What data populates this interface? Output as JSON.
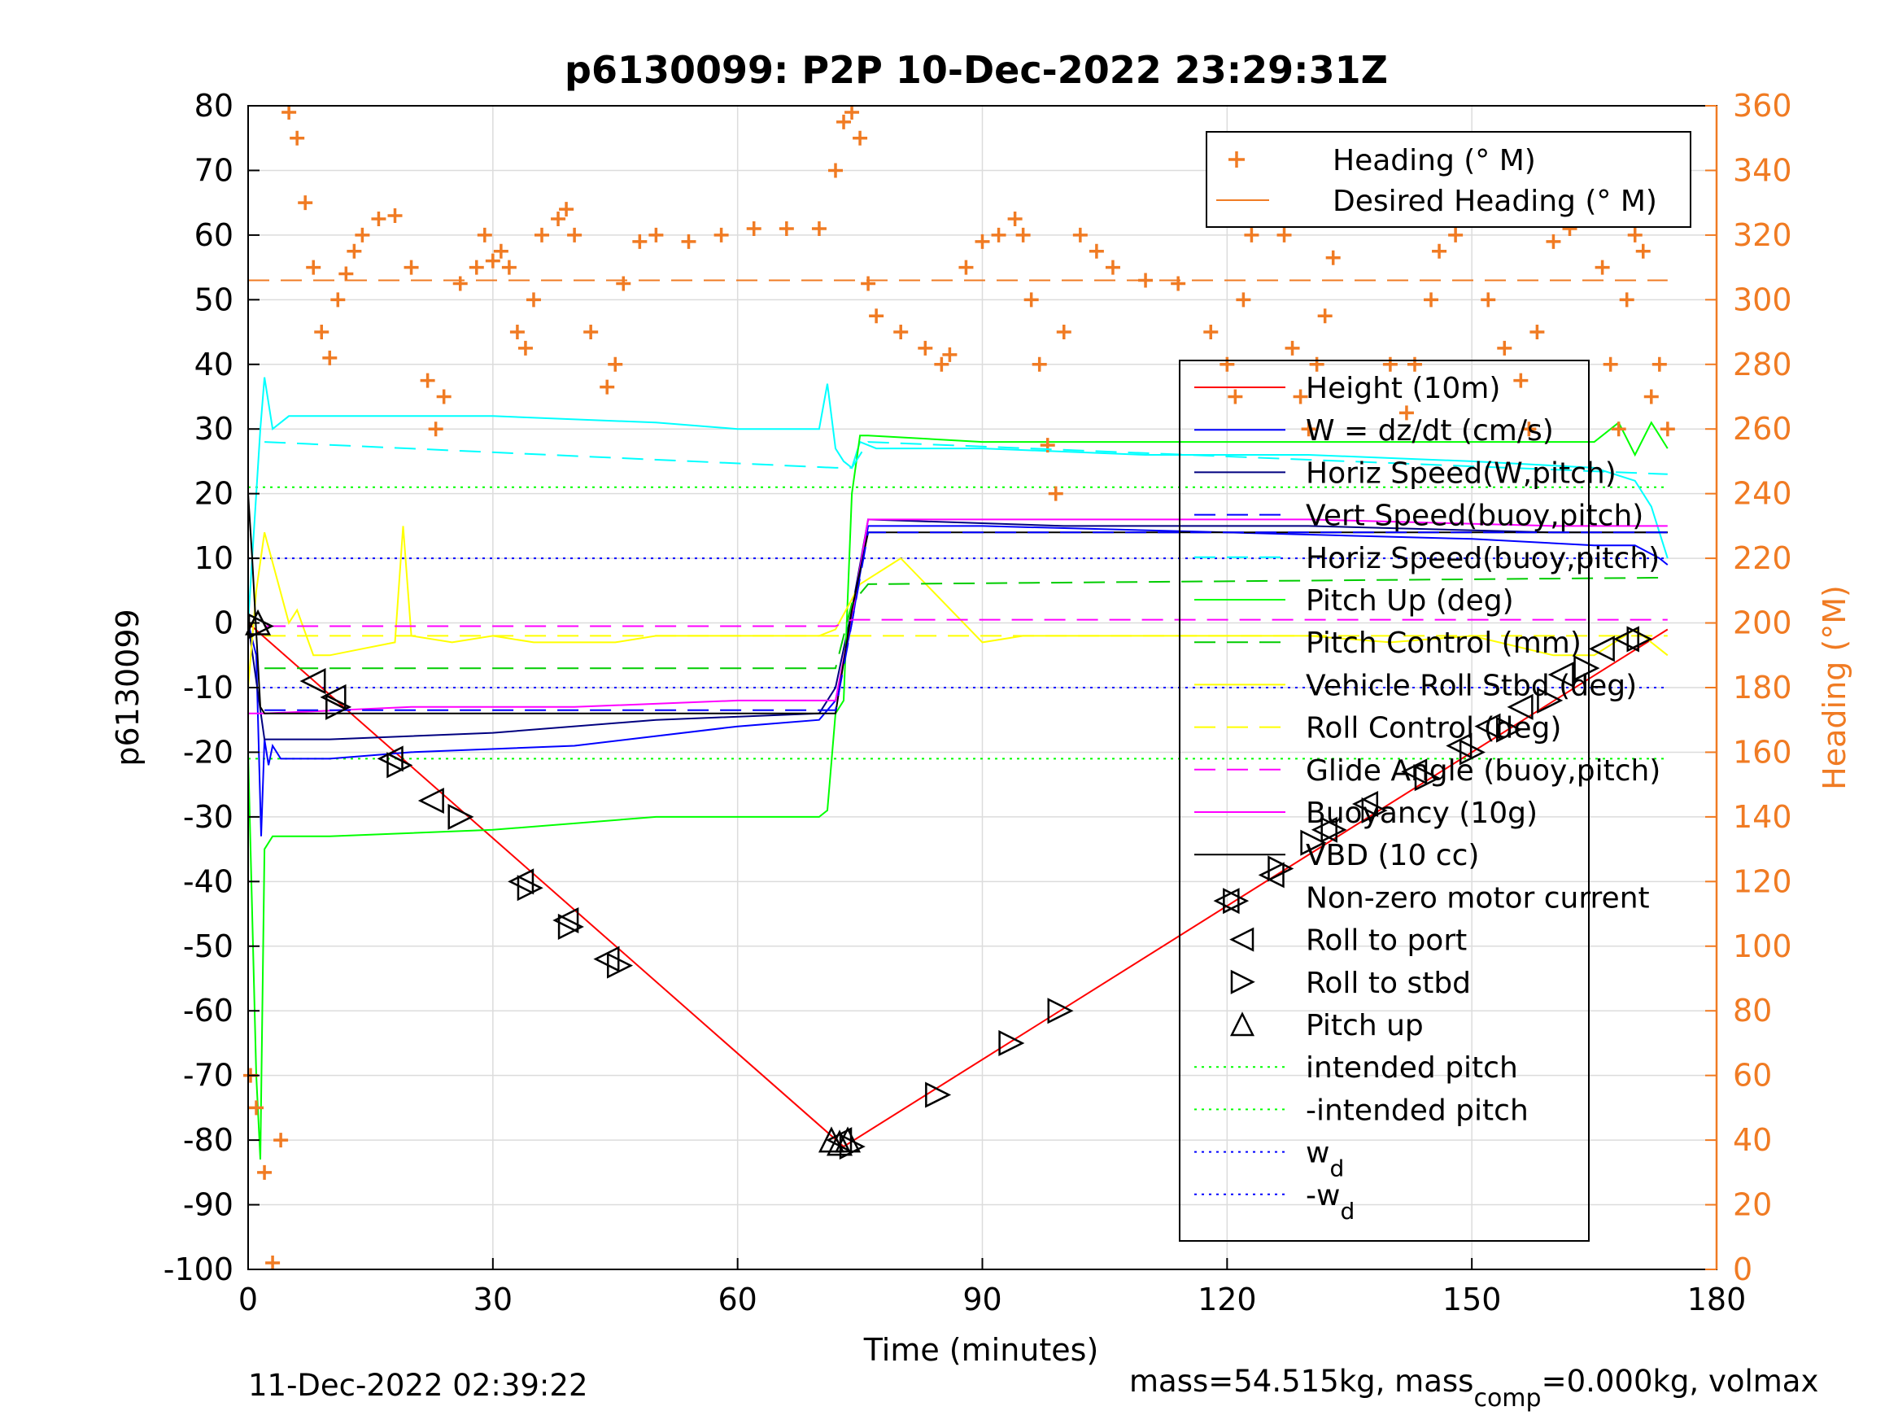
{
  "chart_data": {
    "type": "line",
    "title": "p6130099: P2P 10-Dec-2022 23:29:31Z",
    "xlabel": "Time (minutes)",
    "ylabel": "p6130099",
    "ylabel_right": "Heading (°M)",
    "xlim": [
      0,
      180
    ],
    "ylim": [
      -100,
      80
    ],
    "ylim_right": [
      0,
      360
    ],
    "x_ticks": [
      0,
      30,
      60,
      90,
      120,
      150,
      180
    ],
    "x_tick_labels": [
      "0",
      "30",
      "60",
      "90",
      "120",
      "150",
      "180"
    ],
    "y_ticks": [
      80,
      70,
      60,
      50,
      40,
      30,
      20,
      10,
      0,
      -10,
      -20,
      -30,
      -40,
      -50,
      -60,
      -70,
      -80,
      -90,
      -100
    ],
    "y_tick_labels": [
      "80",
      "70",
      "60",
      "50",
      "40",
      "30",
      "20",
      "10",
      "0",
      "-10",
      "-20",
      "-30",
      "-40",
      "-50",
      "-60",
      "-70",
      "-80",
      "-90",
      "-100"
    ],
    "y_ticks_right": [
      360,
      340,
      320,
      300,
      280,
      260,
      240,
      220,
      200,
      180,
      160,
      140,
      120,
      100,
      80,
      60,
      40,
      20,
      0
    ],
    "y_tick_labels_right": [
      "360",
      "340",
      "320",
      "300",
      "280",
      "260",
      "240",
      "220",
      "200",
      "180",
      "160",
      "140",
      "120",
      "100",
      "80",
      "60",
      "40",
      "20",
      "0"
    ],
    "grid": true,
    "heading_legend": {
      "placement": "top-right",
      "entries": [
        {
          "label": "Heading (° M)",
          "marker": "plus",
          "color": "#f07b23"
        },
        {
          "label": "Desired Heading (° M)",
          "line": "solid",
          "color": "#f07b23"
        }
      ]
    },
    "main_legend": {
      "placement": "right",
      "entries": [
        {
          "label": "Height (10m)",
          "line": "solid",
          "color": "#ff0000"
        },
        {
          "label": "W = dz/dt (cm/s)",
          "line": "solid",
          "color": "#0000ff"
        },
        {
          "label": "Horiz Speed(W,pitch)",
          "line": "solid",
          "color": "#000080"
        },
        {
          "label": "Vert Speed(buoy,pitch)",
          "line": "dashed",
          "color": "#0000ff"
        },
        {
          "label": "Horiz Speed(buoy,pitch)",
          "line": "dashed",
          "color": "#00ffff"
        },
        {
          "label": "Pitch Up (deg)",
          "line": "solid",
          "color": "#00ff00"
        },
        {
          "label": "Pitch Control (mm)",
          "line": "dashed",
          "color": "#00cc00"
        },
        {
          "label": "Vehicle Roll Stbd (deg)",
          "line": "solid",
          "color": "#ffff00"
        },
        {
          "label": "Roll Control (deg)",
          "line": "dashed",
          "color": "#ffff00"
        },
        {
          "label": "Glide Angle (buoy,pitch)",
          "line": "dashed",
          "color": "#ff00ff"
        },
        {
          "label": "Buoyancy (10g)",
          "line": "solid",
          "color": "#ff00ff"
        },
        {
          "label": "VBD (10 cc)",
          "line": "solid",
          "color": "#000000"
        },
        {
          "label": "Non-zero motor current",
          "line": "none",
          "color": "#000000"
        },
        {
          "label": "Roll to port",
          "marker": "triangle-left",
          "color": "#000000"
        },
        {
          "label": "Roll to stbd",
          "marker": "triangle-right",
          "color": "#000000"
        },
        {
          "label": "Pitch up",
          "marker": "triangle-up",
          "color": "#000000"
        },
        {
          "label": "intended pitch",
          "line": "dotted",
          "color": "#00ff00"
        },
        {
          "label": "-intended pitch",
          "line": "dotted",
          "color": "#00ff00"
        },
        {
          "label": "w",
          "subscript": "d",
          "line": "dotted",
          "color": "#0000ff"
        },
        {
          "label": "-w",
          "subscript": "d",
          "line": "dotted",
          "color": "#0000ff"
        }
      ]
    },
    "series": [
      {
        "name": "Height (10m)",
        "color": "#ff0000",
        "x": [
          0,
          73,
          174
        ],
        "y": [
          0,
          -81,
          -1
        ]
      },
      {
        "name": "W = dz/dt (cm/s)",
        "color": "#0000ff",
        "x": [
          0,
          1,
          1.6,
          2,
          2.5,
          3,
          4,
          10,
          20,
          40,
          60,
          70,
          72,
          74,
          76,
          90,
          120,
          150,
          165,
          170,
          173,
          174
        ],
        "y": [
          0,
          -5,
          -33,
          -18,
          -22,
          -19,
          -21,
          -21,
          -20,
          -19,
          -16,
          -15,
          -12,
          0,
          15,
          15,
          14,
          13,
          12,
          12,
          10,
          9
        ]
      },
      {
        "name": "Horiz Speed(W,pitch)",
        "color": "#000080",
        "x": [
          0,
          2,
          10,
          30,
          50,
          70,
          72,
          74,
          76,
          100,
          130,
          160,
          174
        ],
        "y": [
          0,
          -18,
          -18,
          -17,
          -15,
          -14,
          -10,
          2,
          16,
          15,
          15,
          14,
          14
        ]
      },
      {
        "name": "Horiz Speed(buoy,pitch)",
        "color": "#00ffff",
        "x": [
          0,
          1.5,
          2,
          3,
          5,
          10,
          30,
          50,
          60,
          70,
          71,
          72,
          73,
          74,
          75,
          77,
          90,
          110,
          130,
          150,
          165,
          170,
          172,
          174
        ],
        "y": [
          0,
          30,
          38,
          30,
          32,
          32,
          32,
          31,
          30,
          30,
          37,
          27,
          25,
          24,
          28,
          27,
          27,
          26,
          26,
          25,
          24,
          22,
          18,
          10
        ]
      },
      {
        "name": "Pitch Up (deg)",
        "color": "#00ff00",
        "x": [
          0,
          1,
          1.5,
          2,
          3,
          10,
          30,
          50,
          70,
          71,
          72,
          73,
          74,
          75,
          76,
          90,
          120,
          150,
          165,
          168,
          170,
          172,
          174
        ],
        "y": [
          -20,
          -70,
          -83,
          -35,
          -33,
          -33,
          -32,
          -30,
          -30,
          -29,
          -14,
          -12,
          20,
          29,
          29,
          28,
          28,
          28,
          28,
          31,
          26,
          31,
          27
        ]
      },
      {
        "name": "Vehicle Roll Stbd (deg)",
        "color": "#ffff00",
        "x": [
          0,
          1,
          2,
          5,
          6,
          8,
          10,
          14,
          18,
          19,
          20,
          25,
          30,
          35,
          40,
          45,
          50,
          60,
          70,
          72,
          75,
          80,
          90,
          95,
          100,
          120,
          130,
          140,
          150,
          160,
          165,
          170,
          174
        ],
        "y": [
          -10,
          5,
          14,
          0,
          2,
          -5,
          -5,
          -4,
          -3,
          15,
          -2,
          -3,
          -2,
          -3,
          -3,
          -3,
          -2,
          -2,
          -2,
          -1,
          6,
          10,
          -3,
          -2,
          -2,
          -2,
          -2,
          -3,
          -2,
          -5,
          -5,
          -1,
          -5
        ]
      },
      {
        "name": "Buoyancy (10g)",
        "color": "#ff00ff",
        "x": [
          0,
          2,
          20,
          40,
          60,
          72,
          74,
          76,
          100,
          130,
          160,
          174
        ],
        "y": [
          -14,
          -14,
          -13,
          -13,
          -12,
          -12,
          1,
          16,
          16,
          16,
          15,
          15
        ]
      },
      {
        "name": "VBD (10 cc)",
        "color": "#000000",
        "x": [
          0,
          0.5,
          1.5,
          2,
          60,
          72,
          74,
          76,
          100,
          130,
          160,
          174
        ],
        "y": [
          20,
          10,
          -13,
          -14,
          -14,
          -14,
          2,
          14,
          14,
          14,
          14,
          14
        ]
      },
      {
        "name": "Heading (° M)",
        "color": "#f07b23",
        "marker": "plus",
        "axis": "right",
        "x": [
          0.3,
          1,
          2,
          3,
          4,
          5,
          6,
          7,
          8,
          9,
          10,
          11,
          12,
          13,
          14,
          16,
          18,
          20,
          22,
          23,
          24,
          26,
          28,
          29,
          30,
          31,
          32,
          33,
          34,
          35,
          36,
          38,
          39,
          40,
          42,
          44,
          45,
          46,
          48,
          50,
          54,
          58,
          62,
          66,
          70,
          72,
          73,
          74,
          75,
          76,
          77,
          80,
          83,
          85,
          86,
          88,
          90,
          92,
          94,
          95,
          96,
          97,
          98,
          99,
          100,
          102,
          104,
          106,
          110,
          114,
          118,
          120,
          121,
          122,
          123,
          124,
          125,
          127,
          128,
          129,
          130,
          131,
          132,
          133,
          134,
          136,
          137,
          138,
          140,
          142,
          143,
          145,
          146,
          148,
          150,
          152,
          154,
          156,
          157,
          158,
          160,
          162,
          163,
          165,
          166,
          167,
          168,
          169,
          170,
          171,
          172,
          173,
          174
        ],
        "y": [
          60,
          50,
          30,
          2,
          40,
          358,
          350,
          330,
          310,
          290,
          282,
          300,
          308,
          315,
          320,
          325,
          326,
          310,
          275,
          260,
          270,
          305,
          310,
          320,
          312,
          315,
          310,
          290,
          285,
          300,
          320,
          325,
          328,
          320,
          290,
          273,
          280,
          305,
          318,
          320,
          318,
          320,
          322,
          322,
          322,
          340,
          355,
          358,
          350,
          305,
          295,
          290,
          285,
          280,
          283,
          310,
          318,
          320,
          325,
          320,
          300,
          280,
          255,
          240,
          290,
          320,
          315,
          310,
          306,
          305,
          290,
          280,
          270,
          300,
          320,
          330,
          335,
          320,
          285,
          270,
          260,
          280,
          295,
          313,
          325,
          340,
          345,
          330,
          280,
          265,
          280,
          300,
          315,
          320,
          335,
          300,
          285,
          275,
          260,
          290,
          318,
          322,
          340,
          345,
          310,
          280,
          260,
          300,
          320,
          315,
          270,
          280,
          260
        ]
      },
      {
        "name": "Desired Heading (° M)",
        "color": "#f07b23",
        "line": "dashed",
        "axis": "right",
        "x": [
          0,
          174
        ],
        "y": [
          306,
          306
        ]
      },
      {
        "name": "Vert Speed(buoy,pitch)",
        "color": "#0000ff",
        "line": "dashed",
        "x": [
          2,
          72,
          74,
          76,
          174
        ],
        "y": [
          -13.5,
          -13.5,
          0,
          14,
          14
        ]
      },
      {
        "name": "Horiz Speed(buoy,pitch)",
        "color": "#00ffff",
        "line": "dashed",
        "x": [
          2,
          72,
          74,
          76,
          174
        ],
        "y": [
          28,
          24,
          24,
          28,
          23
        ]
      },
      {
        "name": "Pitch Control (mm)",
        "color": "#00cc00",
        "line": "dashed",
        "x": [
          2,
          72,
          74,
          76,
          174
        ],
        "y": [
          -7,
          -7,
          3,
          6,
          7
        ]
      },
      {
        "name": "Roll Control (deg)",
        "color": "#ffff00",
        "line": "dashed",
        "x": [
          2,
          174
        ],
        "y": [
          -2,
          -2
        ]
      },
      {
        "name": "Glide Angle (buoy,pitch)",
        "color": "#ff00ff",
        "line": "dashed",
        "x": [
          2,
          72,
          74,
          174
        ],
        "y": [
          -0.5,
          -0.5,
          0.5,
          0.5
        ]
      }
    ],
    "hlines": [
      {
        "name": "intended pitch",
        "y": 21,
        "color": "#00ff00",
        "line": "dotted"
      },
      {
        "name": "-intended pitch",
        "y": -21,
        "color": "#00ff00",
        "line": "dotted"
      },
      {
        "name": "wd",
        "y": 10,
        "color": "#0000ff",
        "line": "dotted"
      },
      {
        "name": "-wd",
        "y": -10,
        "color": "#0000ff",
        "line": "dotted"
      }
    ],
    "markers": {
      "roll_to_port": [
        [
          8,
          -9
        ],
        [
          10.5,
          -11.5
        ],
        [
          17.5,
          -21
        ],
        [
          22.5,
          -27.5
        ],
        [
          33.5,
          -40
        ],
        [
          39,
          -46
        ],
        [
          44,
          -52
        ],
        [
          72.5,
          -80
        ],
        [
          120,
          -43
        ],
        [
          125.5,
          -39
        ],
        [
          132,
          -32
        ],
        [
          137,
          -28
        ],
        [
          143,
          -23
        ],
        [
          148.5,
          -19
        ],
        [
          152,
          -16
        ],
        [
          156,
          -13
        ],
        [
          161,
          -8
        ],
        [
          166,
          -4
        ],
        [
          169,
          -2.5
        ]
      ],
      "roll_to_stbd": [
        [
          1.5,
          -0.5
        ],
        [
          11,
          -13
        ],
        [
          18.5,
          -22
        ],
        [
          26,
          -30
        ],
        [
          34.5,
          -41
        ],
        [
          39.5,
          -47
        ],
        [
          45.5,
          -53
        ],
        [
          74,
          -81
        ],
        [
          84.5,
          -73
        ],
        [
          93.5,
          -65
        ],
        [
          99.5,
          -60
        ],
        [
          121,
          -43
        ],
        [
          126.5,
          -38
        ],
        [
          130.5,
          -34
        ],
        [
          133,
          -32
        ],
        [
          138,
          -29
        ],
        [
          144.5,
          -24
        ],
        [
          150,
          -20
        ],
        [
          154.5,
          -16.5
        ],
        [
          159.5,
          -12
        ],
        [
          164,
          -7
        ],
        [
          170.5,
          -2.5
        ]
      ],
      "pitch_up": [
        [
          1.2,
          0
        ],
        [
          71.5,
          -80
        ],
        [
          72.5,
          -80.5
        ],
        [
          73.5,
          -80
        ]
      ]
    }
  },
  "footer": {
    "timestamp": "11-Dec-2022 02:39:22",
    "mass_text_a": "mass=54.515kg, mass",
    "mass_sub": "comp",
    "mass_text_b": "=0.000kg, volmax"
  }
}
